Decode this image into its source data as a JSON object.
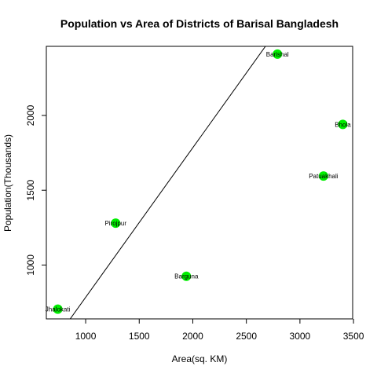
{
  "chart_data": {
    "type": "scatter",
    "title": "Population vs Area of Districts of Barisal Bangladesh",
    "xlabel": "Area(sq. KM)",
    "ylabel": "Population(Thousands)",
    "xlim": [
      633,
      3492
    ],
    "ylim": [
      640,
      2462
    ],
    "x_ticks": [
      1000,
      1500,
      2000,
      2500,
      3000,
      3500
    ],
    "y_ticks": [
      1000,
      1500,
      2000
    ],
    "grid": false,
    "point_color": "#00ee00",
    "line_color": "#000000",
    "points": [
      {
        "label": "Barishal",
        "x": 2790,
        "y": 2410
      },
      {
        "label": "Bhola",
        "x": 3400,
        "y": 1940
      },
      {
        "label": "Patuakhali",
        "x": 3220,
        "y": 1595
      },
      {
        "label": "Pirojpur",
        "x": 1280,
        "y": 1280
      },
      {
        "label": "Barguna",
        "x": 1940,
        "y": 925
      },
      {
        "label": "Jhalokati",
        "x": 740,
        "y": 705
      }
    ],
    "fit_line": {
      "intercept": -215.75,
      "slope": 1.0
    }
  }
}
